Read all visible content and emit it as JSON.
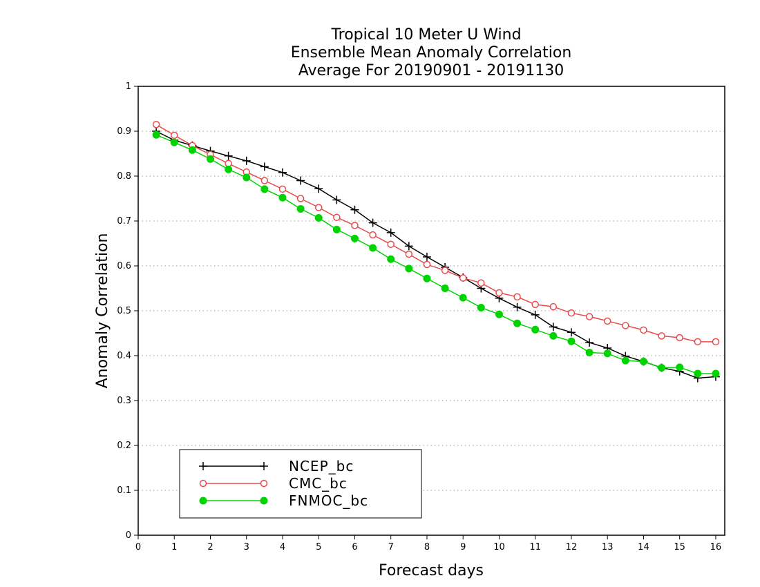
{
  "chart_data": {
    "type": "line",
    "title_lines": [
      "Tropical 10 Meter U Wind",
      "Ensemble Mean Anomaly Correlation",
      "Average For 20190901 - 20191130"
    ],
    "xlabel": "Forecast days",
    "ylabel": "Anomaly Correlation",
    "xlim": [
      0,
      16.25
    ],
    "ylim": [
      0,
      1
    ],
    "xticks": [
      "0",
      "1",
      "2",
      "3",
      "4",
      "5",
      "6",
      "7",
      "8",
      "9",
      "10",
      "11",
      "12",
      "13",
      "14",
      "15",
      "16"
    ],
    "yticks": [
      "0",
      "0.1",
      "0.2",
      "0.3",
      "0.4",
      "0.5",
      "0.6",
      "0.7",
      "0.8",
      "0.9",
      "1"
    ],
    "grid": true,
    "legend_position": "bottom-left",
    "x": [
      0.5,
      1,
      1.5,
      2,
      2.5,
      3,
      3.5,
      4,
      4.5,
      5,
      5.5,
      6,
      6.5,
      7,
      7.5,
      8,
      8.5,
      9,
      9.5,
      10,
      10.5,
      11,
      11.5,
      12,
      12.5,
      13,
      13.5,
      14,
      14.5,
      15,
      15.5,
      16
    ],
    "series": [
      {
        "name": "NCEP_bc",
        "color": "#000000",
        "marker": "plus",
        "values": [
          0.9,
          0.88,
          0.868,
          0.856,
          0.845,
          0.834,
          0.821,
          0.808,
          0.79,
          0.772,
          0.747,
          0.725,
          0.696,
          0.674,
          0.644,
          0.62,
          0.597,
          0.574,
          0.55,
          0.528,
          0.508,
          0.491,
          0.464,
          0.452,
          0.429,
          0.417,
          0.399,
          0.387,
          0.373,
          0.365,
          0.35,
          0.353
        ]
      },
      {
        "name": "CMC_bc",
        "color": "#e84a4a",
        "marker": "open-circle",
        "values": [
          0.915,
          0.891,
          0.868,
          0.848,
          0.828,
          0.809,
          0.79,
          0.771,
          0.75,
          0.73,
          0.708,
          0.69,
          0.669,
          0.648,
          0.626,
          0.603,
          0.59,
          0.573,
          0.562,
          0.54,
          0.531,
          0.514,
          0.509,
          0.495,
          0.487,
          0.477,
          0.467,
          0.457,
          0.444,
          0.44,
          0.431,
          0.431
        ]
      },
      {
        "name": "FNMOC_bc",
        "color": "#00d400",
        "marker": "filled-circle",
        "values": [
          0.892,
          0.875,
          0.858,
          0.838,
          0.815,
          0.797,
          0.771,
          0.752,
          0.727,
          0.707,
          0.681,
          0.661,
          0.64,
          0.615,
          0.594,
          0.572,
          0.55,
          0.529,
          0.507,
          0.492,
          0.472,
          0.458,
          0.444,
          0.432,
          0.407,
          0.405,
          0.389,
          0.387,
          0.373,
          0.374,
          0.36,
          0.36
        ]
      }
    ]
  }
}
